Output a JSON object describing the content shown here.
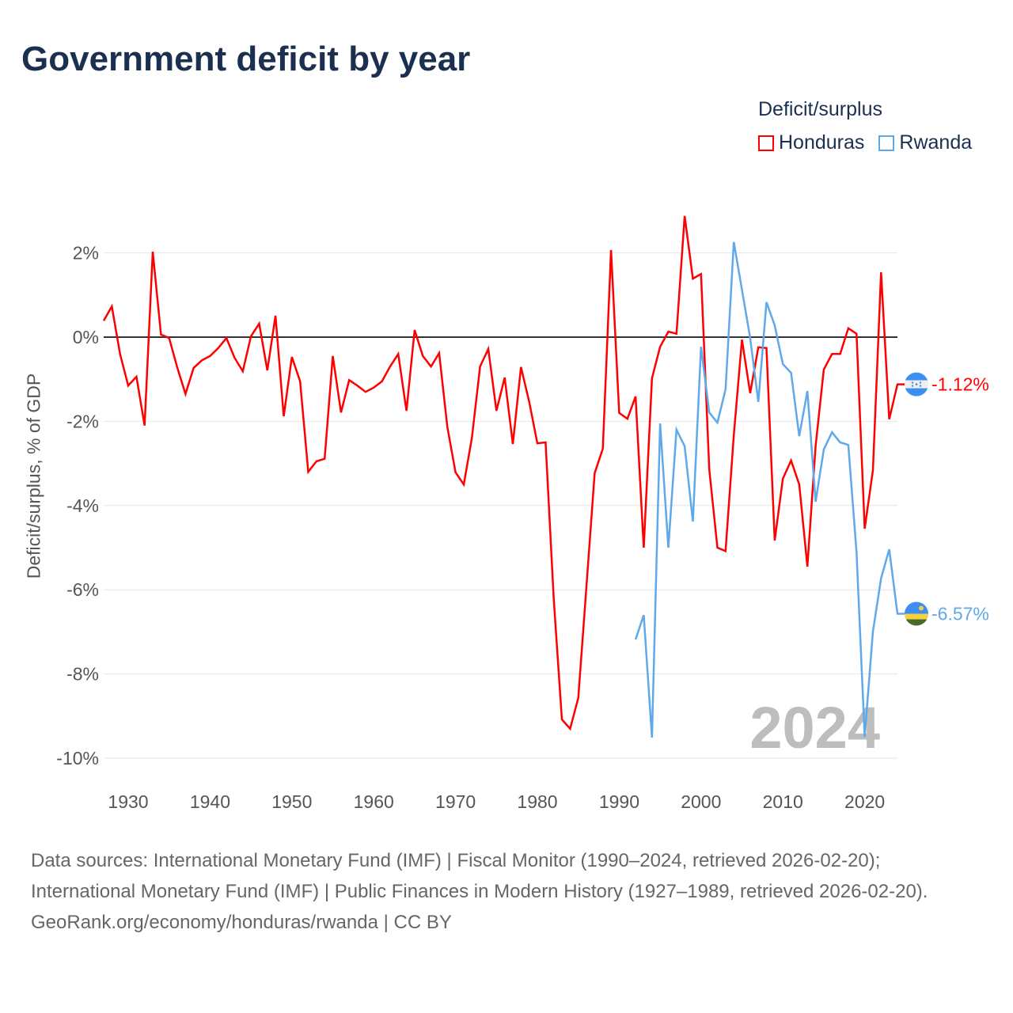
{
  "title": "Government deficit by year",
  "legend": {
    "title": "Deficit/surplus",
    "items": [
      {
        "label": "Honduras",
        "color": "#ff0000"
      },
      {
        "label": "Rwanda",
        "color": "#5fa8ea"
      }
    ]
  },
  "year_watermark": "2024",
  "footer": {
    "sources": "Data sources: International Monetary Fund (IMF) | Fiscal Monitor (1990–2024, retrieved 2026-02-20); International Monetary Fund (IMF) | Public Finances in Modern History (1927–1989, retrieved 2026-02-20).",
    "credit": "GeoRank.org/economy/honduras/rwanda | CC BY"
  },
  "chart_data": {
    "type": "line",
    "title": "Government deficit by year",
    "xlabel": "",
    "ylabel": "Deficit/surplus, % of GDP",
    "xlim": [
      1927,
      2024
    ],
    "ylim": [
      -10.5,
      3
    ],
    "xticks": [
      1930,
      1940,
      1950,
      1960,
      1970,
      1980,
      1990,
      2000,
      2010,
      2020
    ],
    "yticks": [
      2,
      0,
      -2,
      -4,
      -6,
      -8,
      -10
    ],
    "ytick_labels": [
      "2%",
      "0%",
      "-2%",
      "-4%",
      "-6%",
      "-8%",
      "-10%"
    ],
    "grid": true,
    "legend_position": "top-right",
    "series": [
      {
        "name": "Honduras",
        "color": "#ff0000",
        "end_label": "-1.12%",
        "flag": "honduras-flag",
        "start_year": 1927,
        "values": [
          0.39,
          0.73,
          -0.4,
          -1.15,
          -0.94,
          -2.1,
          2.03,
          0.06,
          -0.02,
          -0.73,
          -1.35,
          -0.73,
          -0.55,
          -0.45,
          -0.26,
          -0.02,
          -0.49,
          -0.81,
          0.02,
          0.32,
          -0.79,
          0.51,
          -1.88,
          -0.47,
          -1.05,
          -3.2,
          -2.95,
          -2.89,
          -0.45,
          -1.79,
          -1.02,
          -1.15,
          -1.3,
          -1.2,
          -1.05,
          -0.7,
          -0.4,
          -1.75,
          0.17,
          -0.45,
          -0.7,
          -0.38,
          -2.14,
          -3.21,
          -3.5,
          -2.39,
          -0.7,
          -0.28,
          -1.75,
          -0.96,
          -2.54,
          -0.71,
          -1.54,
          -2.52,
          -2.5,
          -6.22,
          -9.08,
          -9.3,
          -8.57,
          -5.9,
          -3.23,
          -2.65,
          2.07,
          -1.8,
          -1.94,
          -1.41,
          -5.0,
          -0.98,
          -0.23,
          0.13,
          0.08,
          2.88,
          1.39,
          1.5,
          -3.14,
          -5.0,
          -5.08,
          -2.33,
          -0.06,
          -1.33,
          -0.24,
          -0.26,
          -4.83,
          -3.36,
          -2.93,
          -3.5,
          -5.45,
          -2.58,
          -0.77,
          -0.4,
          -0.4,
          0.21,
          0.08,
          -4.55,
          -3.16,
          1.54,
          -1.95,
          -1.12
        ]
      },
      {
        "name": "Rwanda",
        "color": "#5fa8ea",
        "end_label": "-6.57%",
        "flag": "rwanda-flag",
        "start_year": 1992,
        "values": [
          -7.18,
          -6.6,
          -9.51,
          -2.05,
          -5.0,
          -2.2,
          -2.59,
          -4.38,
          -0.23,
          -1.79,
          -2.03,
          -1.24,
          2.26,
          1.13,
          -0.02,
          -1.54,
          0.83,
          0.28,
          -0.64,
          -0.85,
          -2.35,
          -1.28,
          -3.91,
          -2.67,
          -2.26,
          -2.5,
          -2.56,
          -5.11,
          -9.49,
          -6.99,
          -5.73,
          -5.04,
          -6.57
        ]
      }
    ]
  }
}
